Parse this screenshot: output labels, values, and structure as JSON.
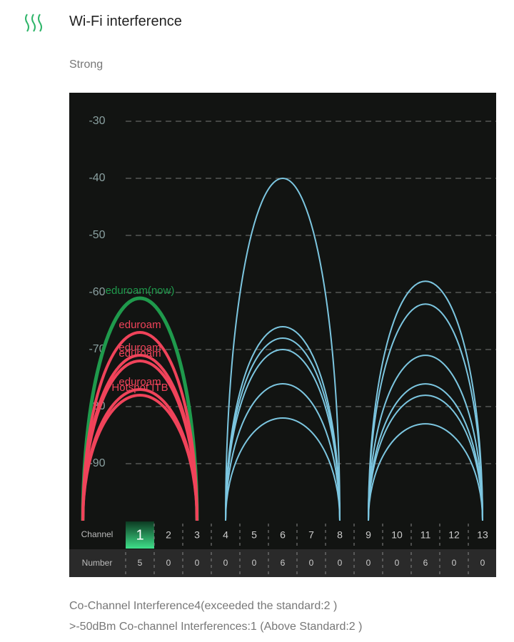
{
  "header": {
    "title": "Wi-Fi interference",
    "level": "Strong"
  },
  "chart_data": {
    "type": "channel-arcs",
    "ylim": [
      -100,
      -25
    ],
    "yticks": [
      -90,
      -80,
      -70,
      -60,
      -50,
      -40,
      -30
    ],
    "grid": true,
    "networks": [
      {
        "channel": 1,
        "level": -61,
        "label": "eduroam(now)",
        "color": "#1f9a4c"
      },
      {
        "channel": 1,
        "level": -67,
        "label": "eduroam",
        "color": "#f0435a"
      },
      {
        "channel": 1,
        "level": -71,
        "label": "eduroam",
        "color": "#f0435a"
      },
      {
        "channel": 1,
        "level": -72,
        "label": "eduroam",
        "color": "#f0435a"
      },
      {
        "channel": 1,
        "level": -77,
        "label": "eduroam",
        "color": "#f0435a"
      },
      {
        "channel": 1,
        "level": -78,
        "label": "Hotspot ITB",
        "color": "#f0435a"
      },
      {
        "channel": 6,
        "level": -40,
        "color": "#7cc6e0"
      },
      {
        "channel": 6,
        "level": -66,
        "color": "#7cc6e0"
      },
      {
        "channel": 6,
        "level": -68,
        "color": "#7cc6e0"
      },
      {
        "channel": 6,
        "level": -70,
        "color": "#7cc6e0"
      },
      {
        "channel": 6,
        "level": -76,
        "color": "#7cc6e0"
      },
      {
        "channel": 6,
        "level": -82,
        "color": "#7cc6e0"
      },
      {
        "channel": 11,
        "level": -58,
        "color": "#7cc6e0"
      },
      {
        "channel": 11,
        "level": -62,
        "color": "#7cc6e0"
      },
      {
        "channel": 11,
        "level": -71,
        "color": "#7cc6e0"
      },
      {
        "channel": 11,
        "level": -76,
        "color": "#7cc6e0"
      },
      {
        "channel": 11,
        "level": -78,
        "color": "#7cc6e0"
      },
      {
        "channel": 11,
        "level": -83,
        "color": "#7cc6e0"
      }
    ]
  },
  "table": {
    "row_labels": [
      "Channel",
      "Number"
    ],
    "channels": [
      1,
      2,
      3,
      4,
      5,
      6,
      7,
      8,
      9,
      10,
      11,
      12,
      13
    ],
    "counts": [
      5,
      0,
      0,
      0,
      0,
      6,
      0,
      0,
      0,
      0,
      6,
      0,
      0
    ]
  },
  "footer": {
    "lines": [
      "Co-Channel Interference4(exceeded the standard:2 )",
      ">-50dBm Co-channel Interferences:1 (Above Standard:2 )"
    ]
  }
}
